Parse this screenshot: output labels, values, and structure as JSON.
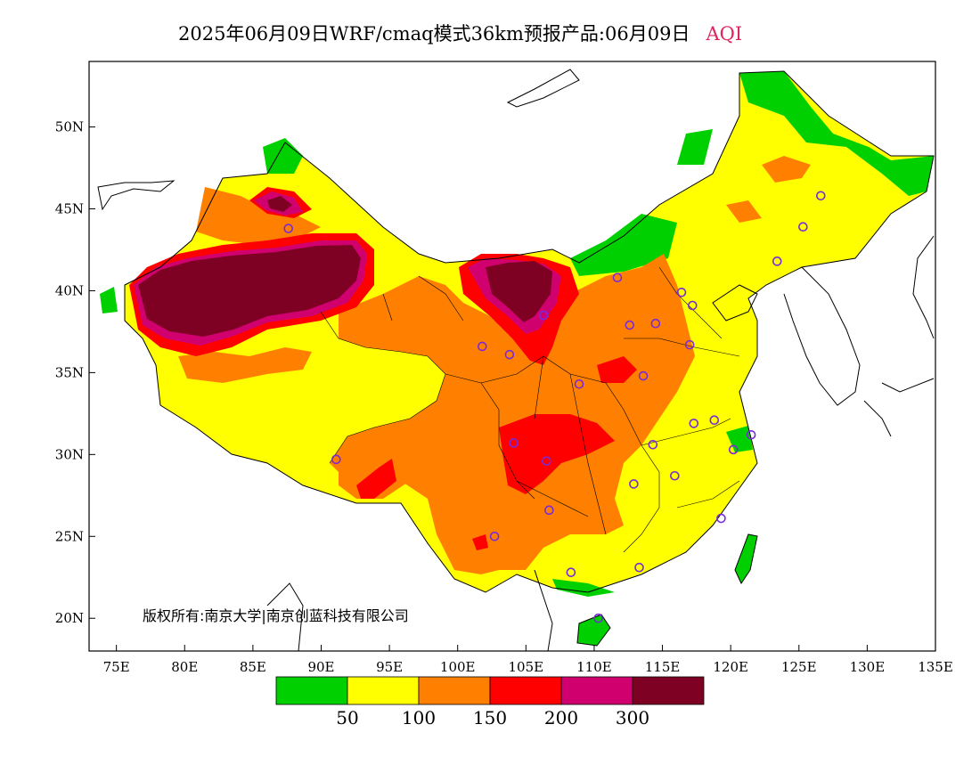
{
  "title": {
    "main": "2025年06月09日WRF/cmaq模式36km预报产品:06月09日",
    "variable": "AQI"
  },
  "map": {
    "lat_labels": [
      "50N",
      "45N",
      "40N",
      "35N",
      "30N",
      "25N",
      "20N"
    ],
    "lon_labels": [
      "75E",
      "80E",
      "85E",
      "90E",
      "95E",
      "100E",
      "105E",
      "110E",
      "115E",
      "120E",
      "125E",
      "130E",
      "135E"
    ],
    "lat_range": [
      18,
      54
    ],
    "lon_range": [
      73,
      135
    ],
    "copyright": "版权所有:南京大学|南京创蓝科技有限公司"
  },
  "legend": {
    "colors": [
      "#00d000",
      "#ffff00",
      "#ff8000",
      "#ff0000",
      "#d0006e",
      "#7e0023"
    ],
    "thresholds": [
      "50",
      "100",
      "150",
      "200",
      "300"
    ]
  },
  "stations": [
    {
      "lon": 87.6,
      "lat": 43.8
    },
    {
      "lon": 91.1,
      "lat": 29.7
    },
    {
      "lon": 101.8,
      "lat": 36.6
    },
    {
      "lon": 103.8,
      "lat": 36.1
    },
    {
      "lon": 106.3,
      "lat": 38.5
    },
    {
      "lon": 111.7,
      "lat": 40.8
    },
    {
      "lon": 112.6,
      "lat": 37.9
    },
    {
      "lon": 114.5,
      "lat": 38.0
    },
    {
      "lon": 116.4,
      "lat": 39.9
    },
    {
      "lon": 117.2,
      "lat": 39.1
    },
    {
      "lon": 117.0,
      "lat": 36.7
    },
    {
      "lon": 113.6,
      "lat": 34.8
    },
    {
      "lon": 108.9,
      "lat": 34.3
    },
    {
      "lon": 104.1,
      "lat": 30.7
    },
    {
      "lon": 106.5,
      "lat": 29.6
    },
    {
      "lon": 106.7,
      "lat": 26.6
    },
    {
      "lon": 102.7,
      "lat": 25.0
    },
    {
      "lon": 108.3,
      "lat": 22.8
    },
    {
      "lon": 113.3,
      "lat": 23.1
    },
    {
      "lon": 110.3,
      "lat": 20.0
    },
    {
      "lon": 112.9,
      "lat": 28.2
    },
    {
      "lon": 114.3,
      "lat": 30.6
    },
    {
      "lon": 115.9,
      "lat": 28.7
    },
    {
      "lon": 117.3,
      "lat": 31.9
    },
    {
      "lon": 118.8,
      "lat": 32.1
    },
    {
      "lon": 120.2,
      "lat": 30.3
    },
    {
      "lon": 121.5,
      "lat": 31.2
    },
    {
      "lon": 119.3,
      "lat": 26.1
    },
    {
      "lon": 123.4,
      "lat": 41.8
    },
    {
      "lon": 125.3,
      "lat": 43.9
    },
    {
      "lon": 126.6,
      "lat": 45.8
    }
  ]
}
